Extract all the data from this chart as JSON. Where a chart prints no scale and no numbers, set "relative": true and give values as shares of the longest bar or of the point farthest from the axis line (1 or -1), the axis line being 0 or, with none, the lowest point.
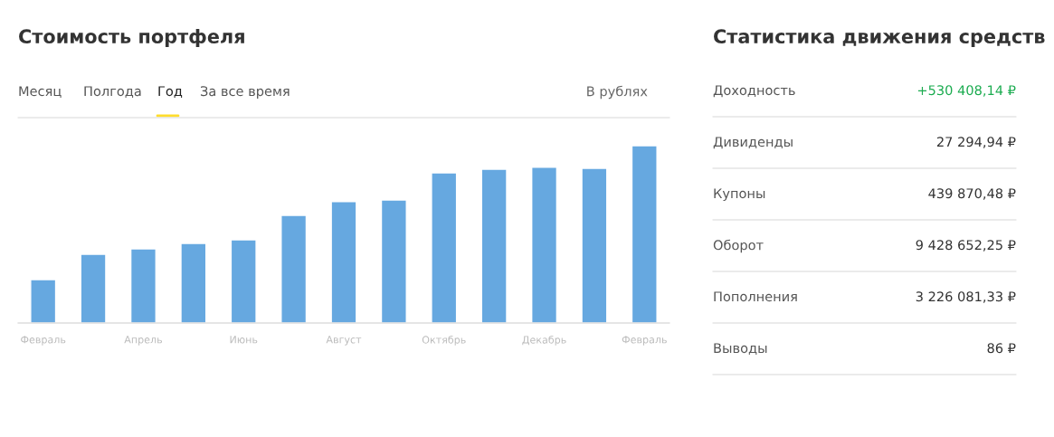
{
  "chart_data": [
    {
      "type": "bar",
      "title": "Стоимость портфеля",
      "relative": true,
      "color": "#66a8e0",
      "grid": false,
      "legend": false,
      "annotations": [
        "Месяц",
        "Полгода",
        "Год",
        "За все время",
        "В рублях"
      ],
      "categories": [
        "Февраль",
        null,
        "Апрель",
        null,
        "Июнь",
        null,
        "Август",
        null,
        "Октябрь",
        null,
        "Декабрь",
        null,
        "Февраль"
      ],
      "values": [
        0.245,
        0.388,
        0.418,
        0.449,
        0.469,
        0.607,
        0.684,
        0.694,
        0.847,
        0.867,
        0.878,
        0.872,
        1.0
      ]
    },
    {
      "type": "other",
      "title": "Статистика движения средств",
      "categories": [
        "Доходность",
        "Дивиденды",
        "Купоны",
        "Оборот",
        "Пополнения",
        "Выводы"
      ],
      "value_labels": [
        "+530 408,14 ₽",
        "27 294,94 ₽",
        "439 870,48 ₽",
        "9 428 652,25 ₽",
        "3 226 081,33 ₽",
        "86 ₽"
      ],
      "colors": [
        "#1aab4f",
        "#333333",
        "#333333",
        "#333333",
        "#333333",
        "#333333"
      ]
    }
  ]
}
